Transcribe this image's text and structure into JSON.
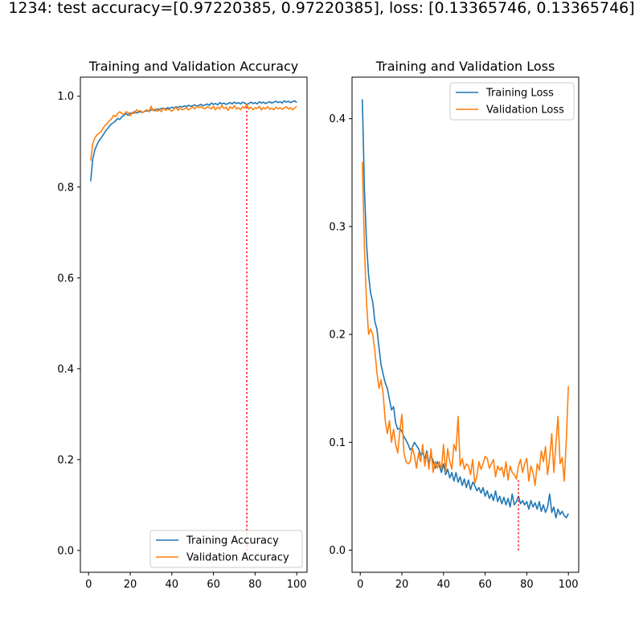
{
  "suptitle": "1234: test accuracy=[0.97220385, 0.97220385], loss: [0.13365746, 0.13365746]",
  "colors": {
    "training": "#1f77b4",
    "validation": "#ff7f0e",
    "marker": "#ff0000"
  },
  "chart_data": [
    {
      "type": "line",
      "title": "Training and Validation Accuracy",
      "xlabel": "",
      "ylabel": "",
      "xlim": [
        -3.95,
        104.95
      ],
      "ylim": [
        -0.048,
        1.042
      ],
      "xticks": [
        0,
        20,
        40,
        60,
        80,
        100
      ],
      "yticks": [
        0.0,
        0.2,
        0.4,
        0.6,
        0.8,
        1.0
      ],
      "ytick_labels": [
        "0.0",
        "0.2",
        "0.4",
        "0.6",
        "0.8",
        "1.0"
      ],
      "grid": false,
      "legend_position": "lower-right",
      "marker_line": {
        "x": 76,
        "y_from": 0.0,
        "y_to": 0.982,
        "style": "dotted"
      },
      "series": [
        {
          "name": "Training Accuracy",
          "color": "#1f77b4",
          "values": [
            0.813,
            0.862,
            0.882,
            0.893,
            0.902,
            0.908,
            0.915,
            0.922,
            0.928,
            0.934,
            0.939,
            0.942,
            0.946,
            0.951,
            0.949,
            0.955,
            0.958,
            0.962,
            0.958,
            0.963,
            0.962,
            0.966,
            0.963,
            0.965,
            0.966,
            0.964,
            0.967,
            0.968,
            0.966,
            0.97,
            0.971,
            0.968,
            0.972,
            0.971,
            0.973,
            0.974,
            0.972,
            0.975,
            0.973,
            0.976,
            0.974,
            0.977,
            0.975,
            0.978,
            0.976,
            0.979,
            0.977,
            0.98,
            0.978,
            0.979,
            0.981,
            0.978,
            0.98,
            0.982,
            0.979,
            0.981,
            0.983,
            0.98,
            0.985,
            0.982,
            0.984,
            0.981,
            0.986,
            0.983,
            0.985,
            0.982,
            0.984,
            0.986,
            0.983,
            0.987,
            0.984,
            0.986,
            0.983,
            0.987,
            0.985,
            0.982,
            0.984,
            0.987,
            0.984,
            0.986,
            0.983,
            0.988,
            0.985,
            0.987,
            0.984,
            0.986,
            0.988,
            0.985,
            0.987,
            0.989,
            0.986,
            0.988,
            0.985,
            0.99,
            0.987,
            0.989,
            0.986,
            0.988,
            0.99,
            0.986
          ]
        },
        {
          "name": "Validation Accuracy",
          "color": "#ff7f0e",
          "values": [
            0.858,
            0.896,
            0.908,
            0.915,
            0.918,
            0.922,
            0.93,
            0.936,
            0.94,
            0.946,
            0.95,
            0.958,
            0.955,
            0.962,
            0.966,
            0.962,
            0.96,
            0.966,
            0.964,
            0.957,
            0.965,
            0.962,
            0.97,
            0.967,
            0.968,
            0.964,
            0.968,
            0.97,
            0.966,
            0.978,
            0.968,
            0.972,
            0.967,
            0.97,
            0.966,
            0.974,
            0.969,
            0.972,
            0.97,
            0.967,
            0.972,
            0.976,
            0.969,
            0.973,
            0.97,
            0.972,
            0.975,
            0.97,
            0.973,
            0.976,
            0.972,
            0.978,
            0.975,
            0.977,
            0.974,
            0.972,
            0.977,
            0.975,
            0.972,
            0.978,
            0.97,
            0.976,
            0.972,
            0.98,
            0.973,
            0.976,
            0.969,
            0.977,
            0.973,
            0.979,
            0.972,
            0.975,
            0.97,
            0.977,
            0.974,
            0.982,
            0.972,
            0.976,
            0.97,
            0.975,
            0.973,
            0.978,
            0.97,
            0.975,
            0.972,
            0.977,
            0.971,
            0.974,
            0.97,
            0.976,
            0.972,
            0.975,
            0.971,
            0.974,
            0.977,
            0.972,
            0.975,
            0.97,
            0.974,
            0.978
          ]
        }
      ]
    },
    {
      "type": "line",
      "title": "Training and Validation Loss",
      "xlabel": "",
      "ylabel": "",
      "xlim": [
        -3.95,
        104.95
      ],
      "ylim": [
        -0.0205,
        0.4385
      ],
      "xticks": [
        0,
        20,
        40,
        60,
        80,
        100
      ],
      "yticks": [
        0.0,
        0.1,
        0.2,
        0.3,
        0.4
      ],
      "ytick_labels": [
        "0.0",
        "0.1",
        "0.2",
        "0.3",
        "0.4"
      ],
      "grid": false,
      "legend_position": "upper-right",
      "marker_line": {
        "x": 76,
        "y_from": 0.0,
        "y_to": 0.067,
        "style": "dotted"
      },
      "series": [
        {
          "name": "Training Loss",
          "color": "#1f77b4",
          "values": [
            0.418,
            0.335,
            0.285,
            0.255,
            0.238,
            0.23,
            0.212,
            0.205,
            0.188,
            0.172,
            0.163,
            0.155,
            0.15,
            0.14,
            0.13,
            0.133,
            0.118,
            0.112,
            0.113,
            0.11,
            0.105,
            0.102,
            0.098,
            0.093,
            0.095,
            0.1,
            0.097,
            0.094,
            0.088,
            0.09,
            0.085,
            0.092,
            0.08,
            0.088,
            0.083,
            0.076,
            0.082,
            0.078,
            0.072,
            0.08,
            0.07,
            0.075,
            0.067,
            0.072,
            0.064,
            0.072,
            0.063,
            0.068,
            0.06,
            0.066,
            0.058,
            0.065,
            0.056,
            0.063,
            0.06,
            0.055,
            0.058,
            0.053,
            0.058,
            0.05,
            0.055,
            0.048,
            0.052,
            0.046,
            0.055,
            0.045,
            0.05,
            0.043,
            0.049,
            0.042,
            0.048,
            0.04,
            0.052,
            0.042,
            0.045,
            0.05,
            0.043,
            0.046,
            0.042,
            0.045,
            0.038,
            0.046,
            0.04,
            0.044,
            0.038,
            0.045,
            0.036,
            0.042,
            0.035,
            0.04,
            0.052,
            0.035,
            0.04,
            0.03,
            0.038,
            0.033,
            0.036,
            0.032,
            0.03,
            0.034
          ]
        },
        {
          "name": "Validation Loss",
          "color": "#ff7f0e",
          "values": [
            0.36,
            0.28,
            0.23,
            0.2,
            0.205,
            0.2,
            0.185,
            0.165,
            0.15,
            0.158,
            0.145,
            0.12,
            0.108,
            0.12,
            0.1,
            0.112,
            0.098,
            0.09,
            0.11,
            0.126,
            0.09,
            0.082,
            0.08,
            0.082,
            0.095,
            0.088,
            0.076,
            0.09,
            0.082,
            0.098,
            0.078,
            0.09,
            0.075,
            0.094,
            0.072,
            0.082,
            0.076,
            0.082,
            0.075,
            0.098,
            0.072,
            0.094,
            0.082,
            0.075,
            0.098,
            0.092,
            0.124,
            0.078,
            0.085,
            0.075,
            0.08,
            0.078,
            0.07,
            0.084,
            0.062,
            0.068,
            0.082,
            0.075,
            0.08,
            0.087,
            0.085,
            0.076,
            0.08,
            0.084,
            0.068,
            0.078,
            0.074,
            0.077,
            0.068,
            0.082,
            0.065,
            0.078,
            0.072,
            0.07,
            0.066,
            0.078,
            0.084,
            0.072,
            0.08,
            0.085,
            0.064,
            0.078,
            0.072,
            0.06,
            0.08,
            0.074,
            0.092,
            0.082,
            0.096,
            0.07,
            0.086,
            0.108,
            0.072,
            0.098,
            0.124,
            0.08,
            0.086,
            0.064,
            0.102,
            0.152
          ]
        }
      ]
    }
  ]
}
